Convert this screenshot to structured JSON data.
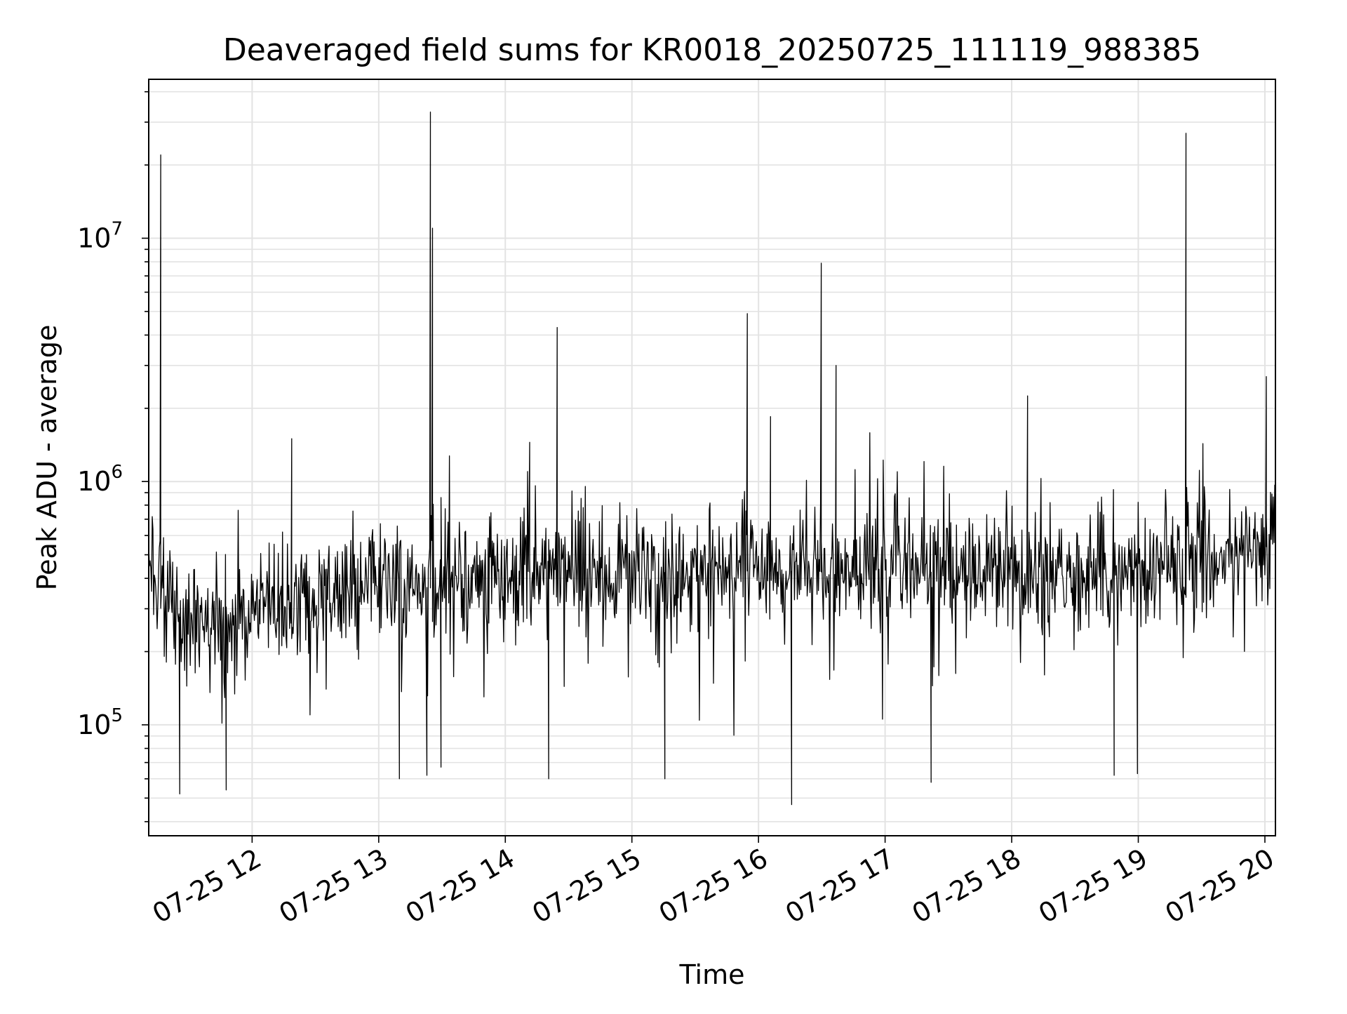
{
  "chart_data": {
    "type": "line",
    "title": "Deaveraged field sums for KR0018_20250725_111119_988385",
    "xlabel": "Time",
    "ylabel": "Peak ADU - average",
    "yscale": "log",
    "grid": true,
    "line_color": "#000000",
    "grid_color": "#e3e3e3",
    "xlim": [
      "2025-07-25 11:11",
      "2025-07-25 20:05"
    ],
    "ylim": [
      35000,
      45000000
    ],
    "x_ticks": [
      {
        "t": "2025-07-25 12:00",
        "label": "07-25 12"
      },
      {
        "t": "2025-07-25 13:00",
        "label": "07-25 13"
      },
      {
        "t": "2025-07-25 14:00",
        "label": "07-25 14"
      },
      {
        "t": "2025-07-25 15:00",
        "label": "07-25 15"
      },
      {
        "t": "2025-07-25 16:00",
        "label": "07-25 16"
      },
      {
        "t": "2025-07-25 17:00",
        "label": "07-25 17"
      },
      {
        "t": "2025-07-25 18:00",
        "label": "07-25 18"
      },
      {
        "t": "2025-07-25 19:00",
        "label": "07-25 19"
      },
      {
        "t": "2025-07-25 20:00",
        "label": "07-25 20"
      }
    ],
    "y_ticks": [
      {
        "value": 100000,
        "base": "10",
        "exp": "5"
      },
      {
        "value": 1000000,
        "base": "10",
        "exp": "6"
      },
      {
        "value": 10000000,
        "base": "10",
        "exp": "7"
      }
    ],
    "baseline": [
      {
        "t": "2025-07-25 11:11",
        "y": 450000
      },
      {
        "t": "2025-07-25 11:30",
        "y": 240000
      },
      {
        "t": "2025-07-25 12:00",
        "y": 300000
      },
      {
        "t": "2025-07-25 12:30",
        "y": 340000
      },
      {
        "t": "2025-07-25 13:00",
        "y": 390000
      },
      {
        "t": "2025-07-25 13:30",
        "y": 360000
      },
      {
        "t": "2025-07-25 14:00",
        "y": 420000
      },
      {
        "t": "2025-07-25 14:30",
        "y": 430000
      },
      {
        "t": "2025-07-25 15:00",
        "y": 420000
      },
      {
        "t": "2025-07-25 16:00",
        "y": 430000
      },
      {
        "t": "2025-07-25 17:00",
        "y": 420000
      },
      {
        "t": "2025-07-25 18:00",
        "y": 430000
      },
      {
        "t": "2025-07-25 19:00",
        "y": 420000
      },
      {
        "t": "2025-07-25 20:05",
        "y": 550000
      }
    ],
    "spikes": [
      {
        "t": "2025-07-25 11:17",
        "y": 22000000
      },
      {
        "t": "2025-07-25 11:17",
        "y": 8000000
      },
      {
        "t": "2025-07-25 12:19",
        "y": 1500000
      },
      {
        "t": "2025-07-25 13:25",
        "y": 33000000
      },
      {
        "t": "2025-07-25 13:26",
        "y": 11000000
      },
      {
        "t": "2025-07-25 14:12",
        "y": 1450000
      },
      {
        "t": "2025-07-25 14:25",
        "y": 4300000
      },
      {
        "t": "2025-07-25 15:55",
        "y": 4900000
      },
      {
        "t": "2025-07-25 16:06",
        "y": 1850000
      },
      {
        "t": "2025-07-25 16:30",
        "y": 7900000
      },
      {
        "t": "2025-07-25 16:37",
        "y": 3000000
      },
      {
        "t": "2025-07-25 18:08",
        "y": 2250000
      },
      {
        "t": "2025-07-25 19:23",
        "y": 27000000
      },
      {
        "t": "2025-07-25 20:01",
        "y": 2700000
      }
    ],
    "dips": [
      {
        "t": "2025-07-25 11:26",
        "y": 52000
      },
      {
        "t": "2025-07-25 11:48",
        "y": 54000
      },
      {
        "t": "2025-07-25 13:10",
        "y": 60000
      },
      {
        "t": "2025-07-25 13:23",
        "y": 62000
      },
      {
        "t": "2025-07-25 13:30",
        "y": 67000
      },
      {
        "t": "2025-07-25 14:21",
        "y": 60000
      },
      {
        "t": "2025-07-25 15:16",
        "y": 60000
      },
      {
        "t": "2025-07-25 16:16",
        "y": 47000
      },
      {
        "t": "2025-07-25 17:22",
        "y": 58000
      },
      {
        "t": "2025-07-25 18:49",
        "y": 62000
      },
      {
        "t": "2025-07-25 19:00",
        "y": 63000
      }
    ]
  }
}
